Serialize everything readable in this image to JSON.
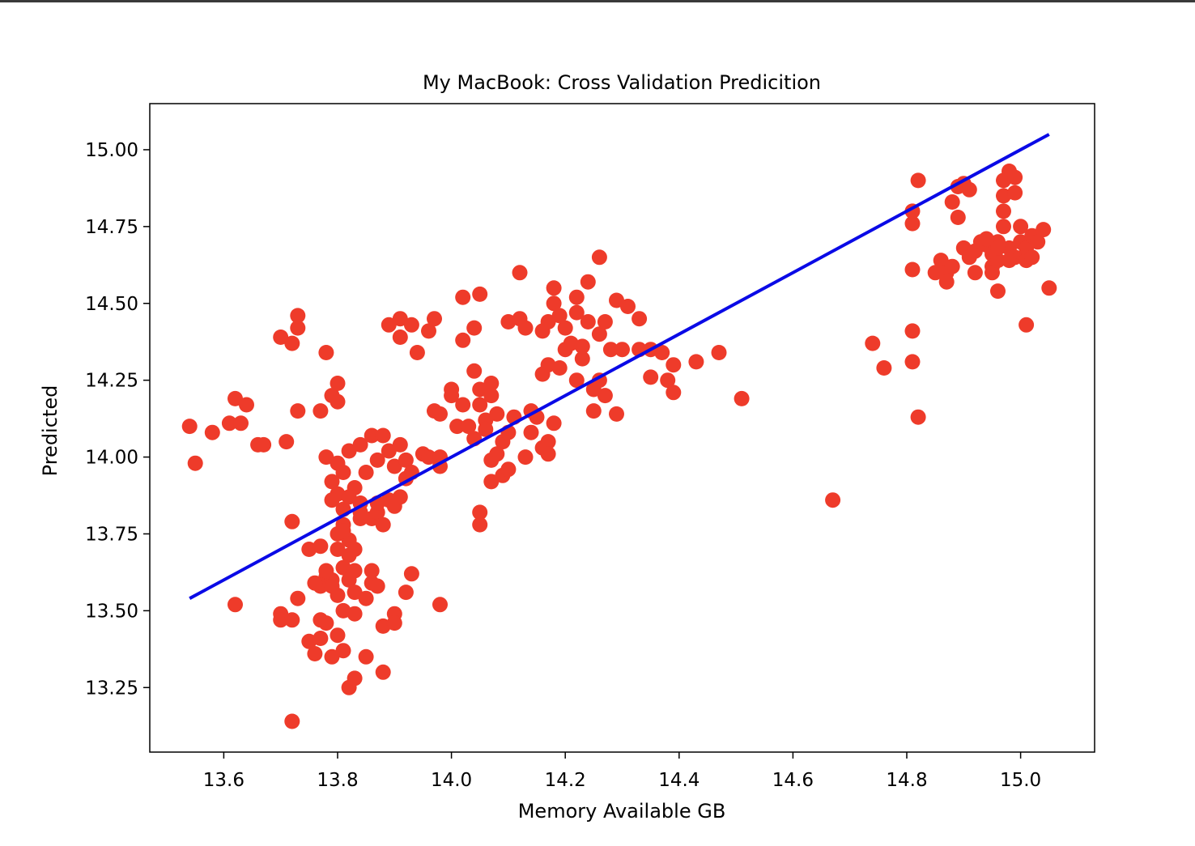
{
  "chart_data": {
    "type": "scatter",
    "title": "My MacBook: Cross Validation Predicition",
    "xlabel": "Memory Available GB",
    "ylabel": "Predicted",
    "xlim": [
      13.47,
      15.13
    ],
    "ylim": [
      13.04,
      15.15
    ],
    "xticks": [
      13.6,
      13.8,
      14.0,
      14.2,
      14.4,
      14.6,
      14.8,
      15.0
    ],
    "xtick_labels": [
      "13.6",
      "13.8",
      "14.0",
      "14.2",
      "14.4",
      "14.6",
      "14.8",
      "15.0"
    ],
    "yticks": [
      13.25,
      13.5,
      13.75,
      14.0,
      14.25,
      14.5,
      14.75,
      15.0
    ],
    "ytick_labels": [
      "13.25",
      "13.50",
      "13.75",
      "14.00",
      "14.25",
      "14.50",
      "14.75",
      "15.00"
    ],
    "grid": false,
    "point_color": "#ee3b2a",
    "line_color": "#0a0ae6",
    "line": {
      "x": [
        13.54,
        15.05
      ],
      "y": [
        13.54,
        15.05
      ]
    },
    "points": [
      [
        13.54,
        14.1
      ],
      [
        13.55,
        13.98
      ],
      [
        13.58,
        14.08
      ],
      [
        13.61,
        14.11
      ],
      [
        13.62,
        14.19
      ],
      [
        13.63,
        14.11
      ],
      [
        13.64,
        14.17
      ],
      [
        13.66,
        14.04
      ],
      [
        13.67,
        14.04
      ],
      [
        13.62,
        13.52
      ],
      [
        13.7,
        14.39
      ],
      [
        13.72,
        14.37
      ],
      [
        13.73,
        14.42
      ],
      [
        13.73,
        14.46
      ],
      [
        13.71,
        14.05
      ],
      [
        13.73,
        14.15
      ],
      [
        13.72,
        13.79
      ],
      [
        13.7,
        13.49
      ],
      [
        13.7,
        13.47
      ],
      [
        13.72,
        13.47
      ],
      [
        13.73,
        13.54
      ],
      [
        13.72,
        13.14
      ],
      [
        13.75,
        13.4
      ],
      [
        13.76,
        13.36
      ],
      [
        13.75,
        13.7
      ],
      [
        13.77,
        13.71
      ],
      [
        13.77,
        13.47
      ],
      [
        13.77,
        13.41
      ],
      [
        13.78,
        13.46
      ],
      [
        13.78,
        13.61
      ],
      [
        13.77,
        13.58
      ],
      [
        13.79,
        13.35
      ],
      [
        13.8,
        13.42
      ],
      [
        13.81,
        13.37
      ],
      [
        13.82,
        13.25
      ],
      [
        13.83,
        13.28
      ],
      [
        13.85,
        13.35
      ],
      [
        13.88,
        13.3
      ],
      [
        13.77,
        14.15
      ],
      [
        13.78,
        14.34
      ],
      [
        13.79,
        14.2
      ],
      [
        13.8,
        14.18
      ],
      [
        13.8,
        14.24
      ],
      [
        13.78,
        14.0
      ],
      [
        13.8,
        13.98
      ],
      [
        13.81,
        13.95
      ],
      [
        13.82,
        14.02
      ],
      [
        13.79,
        13.92
      ],
      [
        13.8,
        13.88
      ],
      [
        13.79,
        13.86
      ],
      [
        13.81,
        13.83
      ],
      [
        13.83,
        13.9
      ],
      [
        13.82,
        13.87
      ],
      [
        13.84,
        13.85
      ],
      [
        13.85,
        13.95
      ],
      [
        13.86,
        13.8
      ],
      [
        13.87,
        13.82
      ],
      [
        13.84,
        14.04
      ],
      [
        13.86,
        14.07
      ],
      [
        13.88,
        14.07
      ],
      [
        13.87,
        13.99
      ],
      [
        13.89,
        14.02
      ],
      [
        13.9,
        13.97
      ],
      [
        13.91,
        14.04
      ],
      [
        13.92,
        13.99
      ],
      [
        13.93,
        13.95
      ],
      [
        13.89,
        13.86
      ],
      [
        13.9,
        13.84
      ],
      [
        13.91,
        13.87
      ],
      [
        13.88,
        13.78
      ],
      [
        13.84,
        13.8
      ],
      [
        13.81,
        13.78
      ],
      [
        13.8,
        13.75
      ],
      [
        13.82,
        13.73
      ],
      [
        13.8,
        13.7
      ],
      [
        13.82,
        13.68
      ],
      [
        13.83,
        13.7
      ],
      [
        13.81,
        13.64
      ],
      [
        13.83,
        13.63
      ],
      [
        13.82,
        13.6
      ],
      [
        13.79,
        13.6
      ],
      [
        13.8,
        13.55
      ],
      [
        13.83,
        13.56
      ],
      [
        13.81,
        13.5
      ],
      [
        13.83,
        13.49
      ],
      [
        13.85,
        13.54
      ],
      [
        13.86,
        13.59
      ],
      [
        13.86,
        13.63
      ],
      [
        13.87,
        13.58
      ],
      [
        13.78,
        13.63
      ],
      [
        13.76,
        13.59
      ],
      [
        13.79,
        13.58
      ],
      [
        13.81,
        13.76
      ],
      [
        13.84,
        13.82
      ],
      [
        13.87,
        13.85
      ],
      [
        13.88,
        13.45
      ],
      [
        13.89,
        14.43
      ],
      [
        13.91,
        14.45
      ],
      [
        13.93,
        14.43
      ],
      [
        13.91,
        14.39
      ],
      [
        13.94,
        14.34
      ],
      [
        13.96,
        14.41
      ],
      [
        13.97,
        14.45
      ],
      [
        13.92,
        13.93
      ],
      [
        13.93,
        13.62
      ],
      [
        13.92,
        13.56
      ],
      [
        13.9,
        13.49
      ],
      [
        13.9,
        13.46
      ],
      [
        13.95,
        14.01
      ],
      [
        13.96,
        14.0
      ],
      [
        13.97,
        14.15
      ],
      [
        13.98,
        14.14
      ],
      [
        13.98,
        14.0
      ],
      [
        13.98,
        13.97
      ],
      [
        13.98,
        13.52
      ],
      [
        14.0,
        14.22
      ],
      [
        14.0,
        14.2
      ],
      [
        14.01,
        14.1
      ],
      [
        14.02,
        14.17
      ],
      [
        14.02,
        14.52
      ],
      [
        14.02,
        14.38
      ],
      [
        14.04,
        14.42
      ],
      [
        14.04,
        14.28
      ],
      [
        14.05,
        14.22
      ],
      [
        14.05,
        14.17
      ],
      [
        14.06,
        14.12
      ],
      [
        14.07,
        14.24
      ],
      [
        14.07,
        14.2
      ],
      [
        14.06,
        14.09
      ],
      [
        14.08,
        14.14
      ],
      [
        14.09,
        14.05
      ],
      [
        14.1,
        14.08
      ],
      [
        14.11,
        14.13
      ],
      [
        14.03,
        14.1
      ],
      [
        14.04,
        14.06
      ],
      [
        14.05,
        14.53
      ],
      [
        14.05,
        13.82
      ],
      [
        14.05,
        13.78
      ],
      [
        14.07,
        13.92
      ],
      [
        14.07,
        13.99
      ],
      [
        14.08,
        14.01
      ],
      [
        14.09,
        13.94
      ],
      [
        14.1,
        13.96
      ],
      [
        14.1,
        14.44
      ],
      [
        14.12,
        14.45
      ],
      [
        14.12,
        14.6
      ],
      [
        14.13,
        14.42
      ],
      [
        14.13,
        14.0
      ],
      [
        14.14,
        14.08
      ],
      [
        14.14,
        14.15
      ],
      [
        14.15,
        14.13
      ],
      [
        14.16,
        14.27
      ],
      [
        14.16,
        14.41
      ],
      [
        14.17,
        14.44
      ],
      [
        14.17,
        14.3
      ],
      [
        14.16,
        14.03
      ],
      [
        14.17,
        14.05
      ],
      [
        14.17,
        14.01
      ],
      [
        14.18,
        14.11
      ],
      [
        14.18,
        14.5
      ],
      [
        14.18,
        14.55
      ],
      [
        14.19,
        14.46
      ],
      [
        14.2,
        14.42
      ],
      [
        14.2,
        14.35
      ],
      [
        14.19,
        14.29
      ],
      [
        14.21,
        14.37
      ],
      [
        14.22,
        14.47
      ],
      [
        14.22,
        14.52
      ],
      [
        14.22,
        14.25
      ],
      [
        14.23,
        14.32
      ],
      [
        14.23,
        14.36
      ],
      [
        14.24,
        14.57
      ],
      [
        14.24,
        14.44
      ],
      [
        14.25,
        14.22
      ],
      [
        14.25,
        14.15
      ],
      [
        14.26,
        14.4
      ],
      [
        14.26,
        14.65
      ],
      [
        14.26,
        14.25
      ],
      [
        14.27,
        14.2
      ],
      [
        14.27,
        14.44
      ],
      [
        14.28,
        14.35
      ],
      [
        14.29,
        14.51
      ],
      [
        14.29,
        14.14
      ],
      [
        14.3,
        14.35
      ],
      [
        14.31,
        14.49
      ],
      [
        14.33,
        14.35
      ],
      [
        14.33,
        14.45
      ],
      [
        14.35,
        14.26
      ],
      [
        14.35,
        14.35
      ],
      [
        14.37,
        14.34
      ],
      [
        14.38,
        14.25
      ],
      [
        14.39,
        14.21
      ],
      [
        14.39,
        14.3
      ],
      [
        14.43,
        14.31
      ],
      [
        14.47,
        14.34
      ],
      [
        14.51,
        14.19
      ],
      [
        14.67,
        13.86
      ],
      [
        14.74,
        14.37
      ],
      [
        14.76,
        14.29
      ],
      [
        14.81,
        14.31
      ],
      [
        14.81,
        14.41
      ],
      [
        14.82,
        14.13
      ],
      [
        14.81,
        14.61
      ],
      [
        14.81,
        14.76
      ],
      [
        14.81,
        14.8
      ],
      [
        14.82,
        14.9
      ],
      [
        14.85,
        14.6
      ],
      [
        14.86,
        14.64
      ],
      [
        14.87,
        14.6
      ],
      [
        14.87,
        14.57
      ],
      [
        14.88,
        14.62
      ],
      [
        14.88,
        14.83
      ],
      [
        14.89,
        14.78
      ],
      [
        14.89,
        14.88
      ],
      [
        14.9,
        14.89
      ],
      [
        14.91,
        14.87
      ],
      [
        14.9,
        14.68
      ],
      [
        14.91,
        14.65
      ],
      [
        14.92,
        14.67
      ],
      [
        14.92,
        14.6
      ],
      [
        14.93,
        14.7
      ],
      [
        14.94,
        14.69
      ],
      [
        14.95,
        14.66
      ],
      [
        14.95,
        14.62
      ],
      [
        14.95,
        14.6
      ],
      [
        14.96,
        14.54
      ],
      [
        14.96,
        14.64
      ],
      [
        14.96,
        14.7
      ],
      [
        14.97,
        14.75
      ],
      [
        14.97,
        14.8
      ],
      [
        14.97,
        14.85
      ],
      [
        14.97,
        14.9
      ],
      [
        14.98,
        14.93
      ],
      [
        14.99,
        14.91
      ],
      [
        14.99,
        14.86
      ],
      [
        14.98,
        14.68
      ],
      [
        14.99,
        14.65
      ],
      [
        15.0,
        14.7
      ],
      [
        15.0,
        14.75
      ],
      [
        15.01,
        14.68
      ],
      [
        15.01,
        14.64
      ],
      [
        15.02,
        14.65
      ],
      [
        15.02,
        14.72
      ],
      [
        15.03,
        14.7
      ],
      [
        15.04,
        14.74
      ],
      [
        15.05,
        14.55
      ],
      [
        15.01,
        14.43
      ],
      [
        14.98,
        14.64
      ],
      [
        14.96,
        14.68
      ],
      [
        14.94,
        14.71
      ]
    ]
  }
}
